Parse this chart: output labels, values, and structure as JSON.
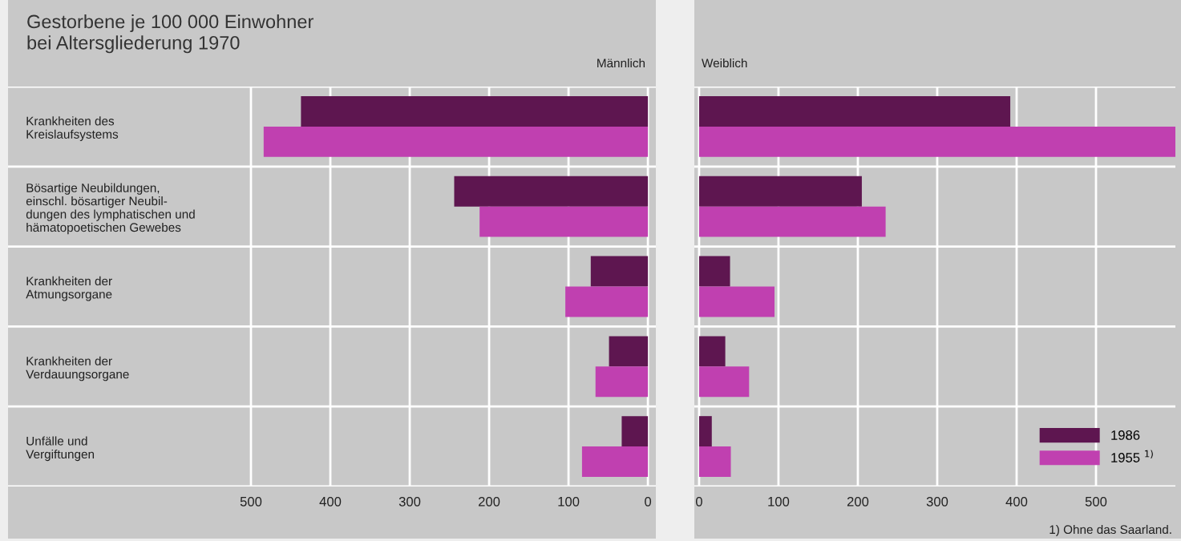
{
  "chart_data": [
    {
      "type": "bar",
      "orientation": "horizontal",
      "title": "Gestorbene je 100 000 Einwohner\nbei Altersgliederung 1970",
      "subtitle": "Männlich",
      "categories": [
        "Krankheiten des\nKreislaufsystems",
        "Bösartige Neubildungen,\neinschl. bösartiger Neubil-\ndungen des lymphatischen und\nhämatopoetischen Gewebes",
        "Krankheiten der\nAtmungsorgane",
        "Krankheiten der\nVerdauungsorgane",
        "Unfälle und\nVergiftungen"
      ],
      "series": [
        {
          "color": "#5e1650",
          "values": [
            437,
            244,
            72,
            49,
            33
          ]
        },
        {
          "color": "#c040b0",
          "values": [
            484,
            212,
            104,
            66,
            83
          ]
        }
      ],
      "xlim": [
        806,
        -10
      ],
      "xticks": [
        500,
        400,
        300,
        200,
        100,
        0
      ],
      "grid": true,
      "legend": false
    },
    {
      "type": "bar",
      "orientation": "horizontal",
      "title": "Weiblich",
      "categories": [
        null,
        null,
        null,
        null,
        null
      ],
      "series": [
        {
          "name": "1986",
          "color": "#5e1650",
          "values": [
            392,
            205,
            39,
            33,
            16
          ]
        },
        {
          "name": "1955 $^{1)}$",
          "color": "#c040b0",
          "values": [
            600,
            235,
            95,
            63,
            40
          ]
        }
      ],
      "xlim": [
        -6,
        600
      ],
      "xticks": [
        0,
        100,
        200,
        300,
        400,
        500
      ],
      "grid": true,
      "legend": "bottom right",
      "annotations": [
        "1) Ohne das Saarland."
      ]
    }
  ]
}
